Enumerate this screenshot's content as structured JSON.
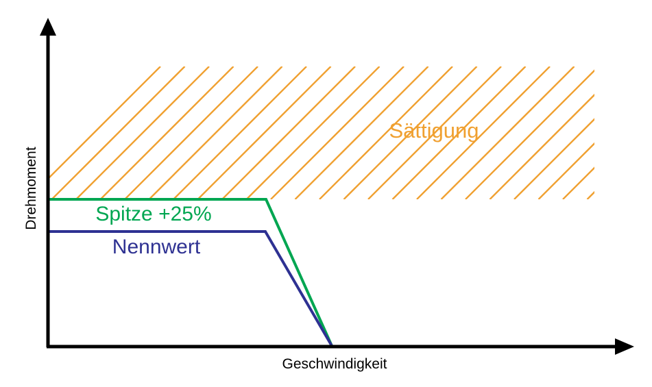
{
  "diagram": {
    "xlabel": "Geschwindigkeit",
    "ylabel": "Drehmoment",
    "saturation_label": "Sättigung",
    "peak_label": "Spitze +25%",
    "rated_label": "Nennwert",
    "colors": {
      "axes": "#000000",
      "saturation": "#f0a030",
      "peak": "#00a651",
      "rated": "#2e3192"
    }
  }
}
